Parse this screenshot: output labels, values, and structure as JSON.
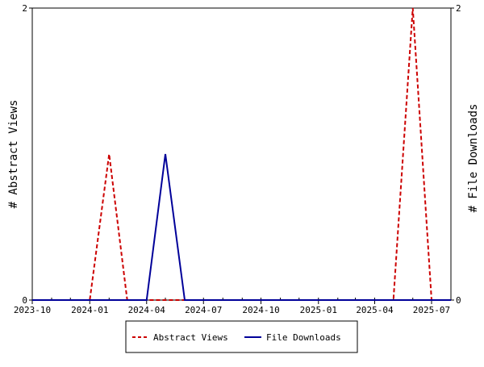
{
  "chart_data": {
    "type": "line",
    "x_ticks": [
      "2023-10",
      "2024-01",
      "2024-04",
      "2024-07",
      "2024-10",
      "2025-01",
      "2025-04",
      "2025-07"
    ],
    "x_range": [
      "2023-10-01",
      "2025-08-01"
    ],
    "y_left": {
      "label": "# Abstract Views",
      "range": [
        0,
        2
      ],
      "ticks": [
        "0",
        "2"
      ]
    },
    "y_right": {
      "label": "# File Downloads",
      "range": [
        0,
        2
      ],
      "ticks": [
        "0",
        "2"
      ]
    },
    "grid": false,
    "legend_position": "bottom",
    "series": [
      {
        "name": "Abstract Views",
        "axis": "left",
        "color": "#cc0000",
        "style": "dashed",
        "x": [
          "2023-10-01",
          "2023-11-01",
          "2023-12-01",
          "2024-01-01",
          "2024-02-01",
          "2024-03-01",
          "2024-04-01",
          "2024-05-01",
          "2024-06-01",
          "2024-07-01",
          "2024-08-01",
          "2024-09-01",
          "2024-10-01",
          "2024-11-01",
          "2024-12-01",
          "2025-01-01",
          "2025-02-01",
          "2025-03-01",
          "2025-04-01",
          "2025-05-01",
          "2025-06-01",
          "2025-07-01",
          "2025-08-01"
        ],
        "values": [
          0,
          0,
          0,
          0,
          1,
          0,
          0,
          0,
          0,
          0,
          0,
          0,
          0,
          0,
          0,
          0,
          0,
          0,
          0,
          0,
          2,
          0,
          0
        ]
      },
      {
        "name": "File Downloads",
        "axis": "right",
        "color": "#000099",
        "style": "solid",
        "x": [
          "2023-10-01",
          "2023-11-01",
          "2023-12-01",
          "2024-01-01",
          "2024-02-01",
          "2024-03-01",
          "2024-04-01",
          "2024-05-01",
          "2024-06-01",
          "2024-07-01",
          "2024-08-01",
          "2024-09-01",
          "2024-10-01",
          "2024-11-01",
          "2024-12-01",
          "2025-01-01",
          "2025-02-01",
          "2025-03-01",
          "2025-04-01",
          "2025-05-01",
          "2025-06-01",
          "2025-07-01",
          "2025-08-01"
        ],
        "values": [
          0,
          0,
          0,
          0,
          0,
          0,
          0,
          1,
          0,
          0,
          0,
          0,
          0,
          0,
          0,
          0,
          0,
          0,
          0,
          0,
          0,
          0,
          0
        ]
      }
    ]
  }
}
